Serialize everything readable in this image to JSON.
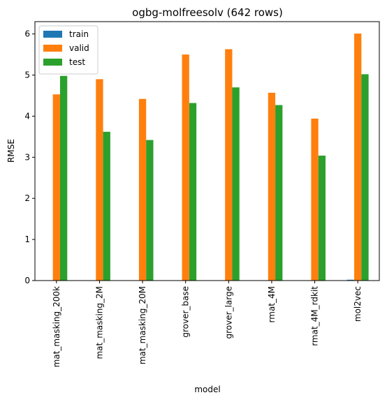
{
  "chart_data": {
    "type": "bar",
    "title": "ogbg-molfreesolv (642 rows)",
    "xlabel": "model",
    "ylabel": "RMSE",
    "ylim": [
      0,
      6.3
    ],
    "yticks": [
      "0",
      "1",
      "2",
      "3",
      "4",
      "5",
      "6"
    ],
    "categories": [
      "mat_masking_200k",
      "mat_masking_2M",
      "mat_masking_20M",
      "grover_base",
      "grover_large",
      "rmat_4M",
      "rmat_4M_rdkit",
      "mol2vec"
    ],
    "series": [
      {
        "name": "train",
        "color": "#1f77b4",
        "values": [
          0,
          0,
          0,
          0,
          0,
          0,
          0,
          0.02
        ]
      },
      {
        "name": "valid",
        "color": "#ff7f0e",
        "values": [
          4.53,
          4.9,
          4.42,
          5.5,
          5.63,
          4.57,
          3.94,
          6.01
        ]
      },
      {
        "name": "test",
        "color": "#2ca02c",
        "values": [
          4.98,
          3.62,
          3.42,
          4.32,
          4.7,
          4.27,
          3.04,
          5.02
        ]
      }
    ],
    "grid": false,
    "legend": "top-left"
  }
}
